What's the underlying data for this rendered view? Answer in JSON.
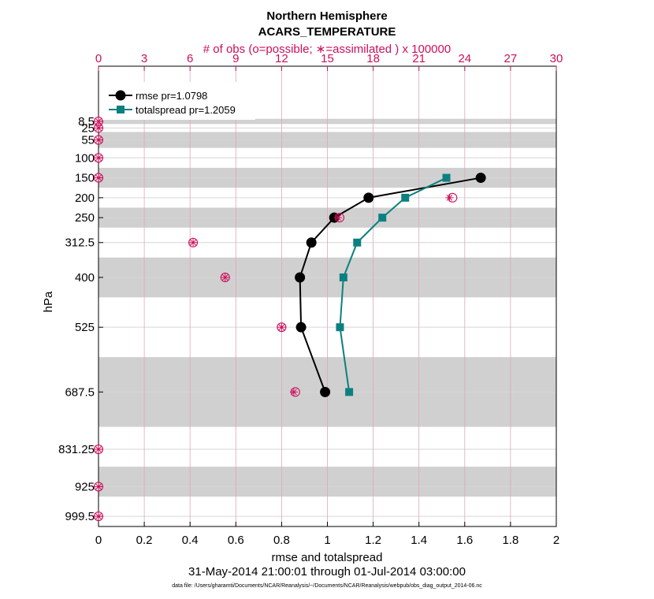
{
  "colors": {
    "accent": "#cc0f5b",
    "rmse": "#000000",
    "spread": "#0c8080",
    "band": "#d0d0d0",
    "grid": "#d6d6d6",
    "axis": "#000000"
  },
  "chart_data": {
    "type": "line",
    "title": "Northern Hemisphere",
    "subtitle": "ACARS_TEMPERATURE",
    "top_axis_label": "# of obs (o=possible; ∗=assimilated ) x 100000",
    "xlabel": "rmse and totalspread",
    "ylabel": "hPa",
    "date_range": "31-May-2014 21:00:01 through 01-Jul-2014 03:00:00",
    "footnote": "data file: /Users/gharamti/Documents/NCAR/Reanalysis/~/Documents/NCAR/Reanalysis/webpub/obs_diag_output_2014-06.nc",
    "xlim": [
      0,
      2
    ],
    "x_ticks": [
      "0",
      "0.2",
      "0.4",
      "0.6",
      "0.8",
      "1",
      "1.2",
      "1.4",
      "1.6",
      "1.8",
      "2"
    ],
    "top_xlim": [
      0,
      30
    ],
    "top_ticks": [
      "0",
      "3",
      "6",
      "9",
      "12",
      "15",
      "18",
      "21",
      "24",
      "27",
      "30"
    ],
    "ylim": [
      1025,
      -130
    ],
    "y_levels": [
      8.5,
      25,
      55,
      100,
      150,
      200,
      250,
      312.5,
      400,
      525,
      687.5,
      831.25,
      925,
      999.5
    ],
    "y_tick_labels": [
      "8.5",
      "25",
      "55",
      "100",
      "150",
      "200",
      "250",
      "312.5",
      "400",
      "525",
      "687.5",
      "831.25",
      "925",
      "999.5"
    ],
    "bands": [
      [
        2,
        15
      ],
      [
        35,
        75
      ],
      [
        125,
        175
      ],
      [
        225,
        275
      ],
      [
        350,
        450
      ],
      [
        600,
        775
      ],
      [
        875,
        950
      ]
    ],
    "legend": [
      {
        "name": "rmse",
        "label": "rmse pr=1.0798"
      },
      {
        "name": "totalspread",
        "label": "totalspread pr=1.2059"
      }
    ],
    "series": [
      {
        "name": "rmse",
        "levels": [
          150,
          200,
          250,
          312.5,
          400,
          525,
          687.5
        ],
        "values": [
          1.67,
          1.18,
          1.03,
          0.93,
          0.88,
          0.885,
          0.99
        ]
      },
      {
        "name": "totalspread",
        "levels": [
          150,
          200,
          250,
          312.5,
          400,
          525,
          687.5
        ],
        "values": [
          1.52,
          1.34,
          1.24,
          1.13,
          1.07,
          1.055,
          1.095
        ]
      }
    ],
    "obs_counts": {
      "units": "x 100000",
      "levels": [
        8.5,
        25,
        55,
        100,
        150,
        200,
        250,
        312.5,
        400,
        525,
        687.5,
        831.25,
        925,
        999.5
      ],
      "possible": [
        0,
        0,
        0,
        0,
        0,
        23.2,
        15.8,
        6.2,
        8.3,
        12.0,
        12.9,
        0,
        0,
        0
      ],
      "assimilated": [
        0,
        0,
        0,
        0,
        0,
        23.0,
        15.7,
        6.2,
        8.3,
        12.0,
        12.8,
        0,
        0,
        0
      ]
    }
  }
}
